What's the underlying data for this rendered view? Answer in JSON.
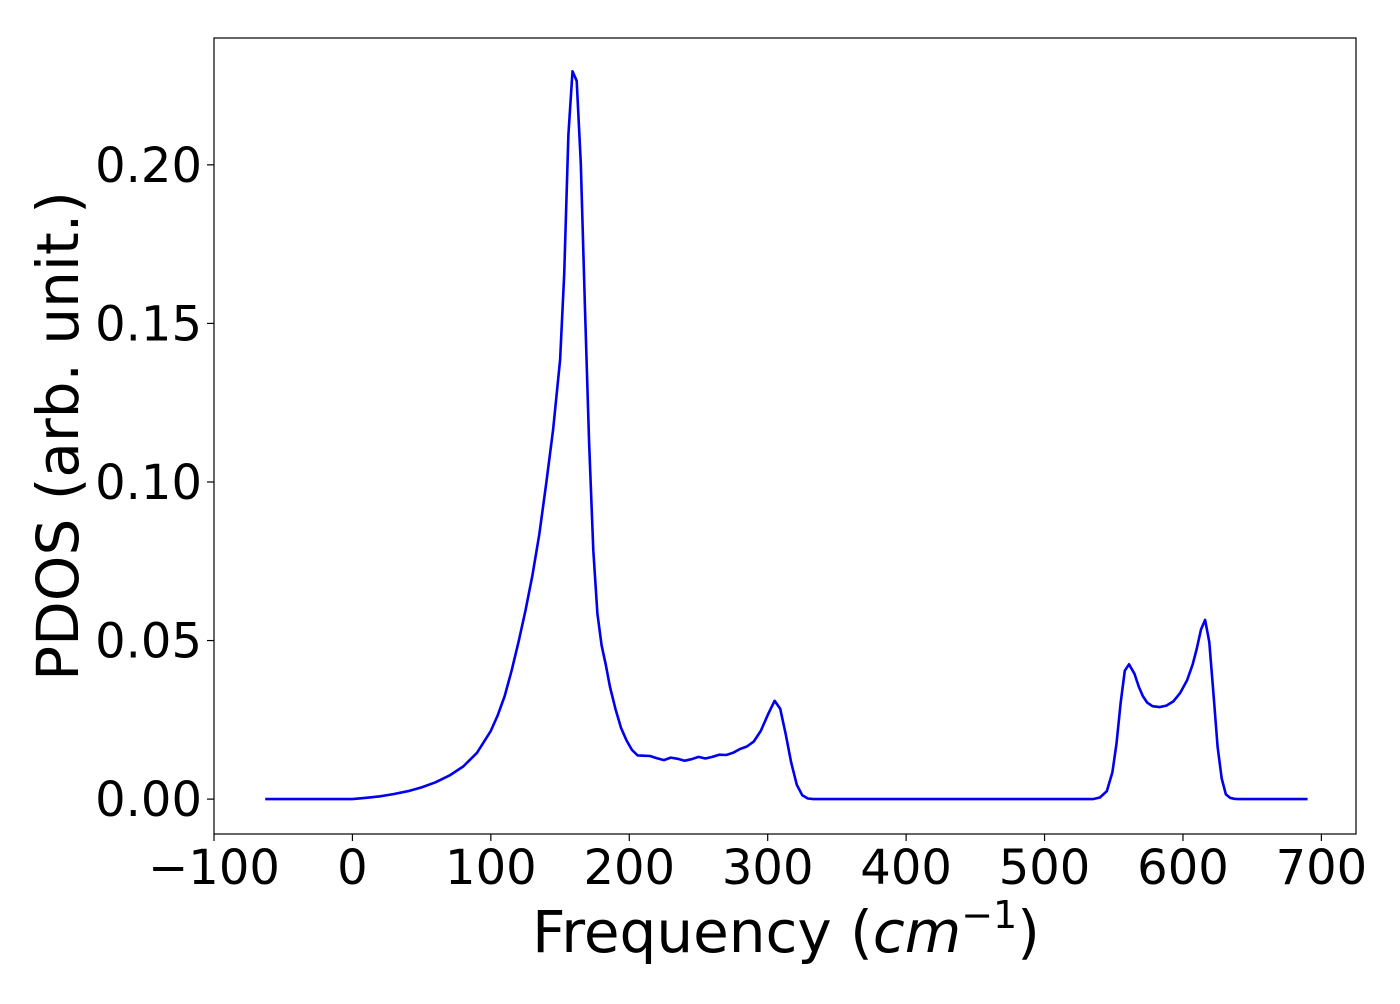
{
  "chart_data": {
    "type": "line",
    "title": "",
    "xlabel": "Frequency (",
    "xlabel_unit_base": "cm",
    "xlabel_unit_exp": "−1",
    "xlabel_close": ")",
    "ylabel": "PDOS (arb. unit.)",
    "xlim": [
      -100,
      725
    ],
    "ylim": [
      -0.011,
      0.24
    ],
    "x_ticks": [
      -100,
      0,
      100,
      200,
      300,
      400,
      500,
      600,
      700
    ],
    "x_tick_labels": [
      "−100",
      "0",
      "100",
      "200",
      "300",
      "400",
      "500",
      "600",
      "700"
    ],
    "y_ticks": [
      0.0,
      0.05,
      0.1,
      0.15,
      0.2
    ],
    "y_tick_labels": [
      "0.00",
      "0.05",
      "0.10",
      "0.15",
      "0.20"
    ],
    "grid": false,
    "legend": "none",
    "series": [
      {
        "color": "#0000ee",
        "x": [
          -63,
          -40,
          -20,
          0,
          10,
          20,
          30,
          40,
          50,
          60,
          70,
          80,
          90,
          100,
          105,
          110,
          115,
          120,
          125,
          130,
          135,
          140,
          145,
          150,
          153,
          156,
          159,
          162,
          165,
          168,
          171,
          174,
          177,
          180,
          183,
          186,
          190,
          194,
          198,
          202,
          206,
          210,
          215,
          220,
          225,
          230,
          235,
          240,
          245,
          250,
          255,
          260,
          265,
          270,
          275,
          280,
          285,
          290,
          295,
          300,
          305,
          309,
          313,
          317,
          321,
          325,
          329,
          333,
          340,
          360,
          400,
          450,
          500,
          535,
          540,
          545,
          549,
          552,
          555,
          558,
          561,
          565,
          568,
          571,
          574,
          578,
          583,
          588,
          593,
          598,
          603,
          607,
          610,
          613,
          616,
          619,
          622,
          625,
          628,
          631,
          634,
          637,
          640,
          645,
          650,
          660,
          670,
          690
        ],
        "y": [
          0.0,
          0.0,
          0.0,
          0.0,
          0.0004,
          0.0009,
          0.0016,
          0.0025,
          0.0037,
          0.0053,
          0.0074,
          0.0103,
          0.0146,
          0.0215,
          0.0265,
          0.0325,
          0.0405,
          0.0495,
          0.0595,
          0.0705,
          0.0835,
          0.0995,
          0.1165,
          0.1385,
          0.1655,
          0.2095,
          0.2295,
          0.2265,
          0.2005,
          0.1545,
          0.1125,
          0.0785,
          0.0585,
          0.0485,
          0.0425,
          0.0355,
          0.0285,
          0.0225,
          0.0185,
          0.0155,
          0.0138,
          0.0137,
          0.0136,
          0.0129,
          0.0123,
          0.0131,
          0.0127,
          0.0121,
          0.0126,
          0.0133,
          0.0128,
          0.0133,
          0.014,
          0.0139,
          0.0146,
          0.0158,
          0.0166,
          0.0182,
          0.0215,
          0.0265,
          0.031,
          0.0285,
          0.0205,
          0.0115,
          0.0045,
          0.0012,
          0.0002,
          0.0,
          0.0,
          0.0,
          0.0,
          0.0,
          0.0,
          0.0,
          0.0005,
          0.0025,
          0.0085,
          0.0175,
          0.0305,
          0.0405,
          0.0425,
          0.0395,
          0.0355,
          0.0325,
          0.0305,
          0.0293,
          0.029,
          0.0295,
          0.0308,
          0.0335,
          0.0375,
          0.0425,
          0.0475,
          0.0535,
          0.0565,
          0.0495,
          0.0335,
          0.0165,
          0.0065,
          0.0015,
          0.0004,
          0.0001,
          0.0,
          0.0,
          0.0,
          0.0,
          0.0,
          0.0
        ]
      }
    ]
  }
}
